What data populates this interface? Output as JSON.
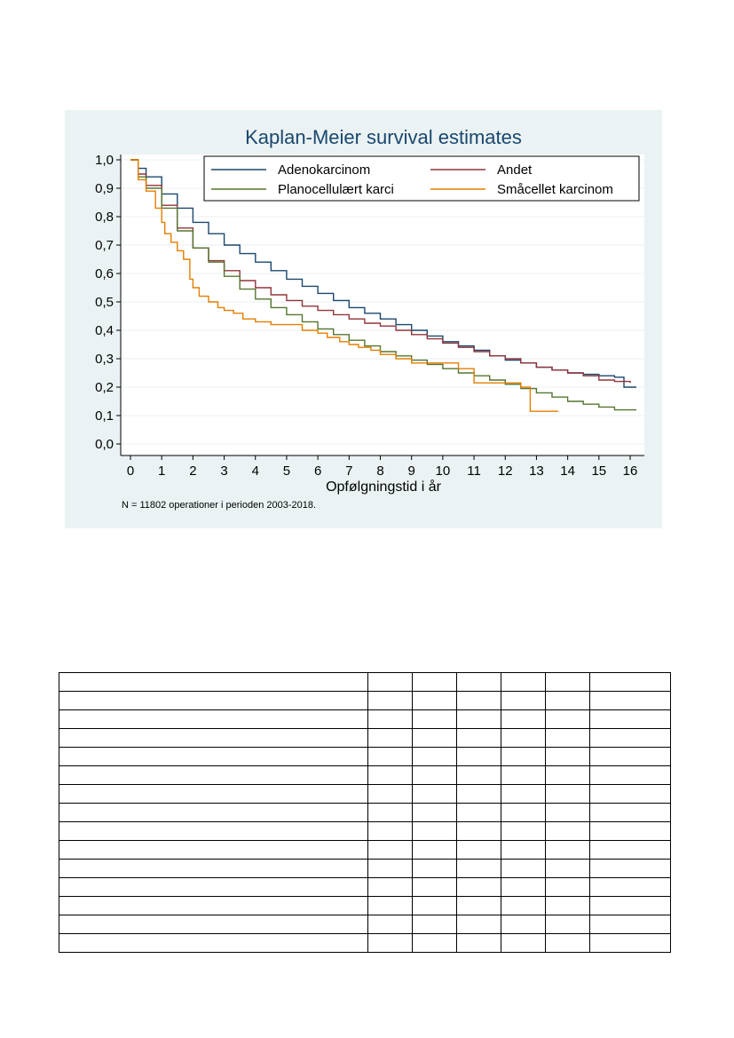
{
  "chart_data": {
    "type": "line",
    "title": "Kaplan-Meier survival estimates",
    "xlabel": "Opfølgningstid i år",
    "ylabel": "",
    "note": "N = 11802 operationer i perioden 2003-2018.",
    "xlim": [
      0,
      16
    ],
    "ylim": [
      0,
      1
    ],
    "xticks": [
      "0",
      "1",
      "2",
      "3",
      "4",
      "5",
      "6",
      "7",
      "8",
      "9",
      "10",
      "11",
      "12",
      "13",
      "14",
      "15",
      "16"
    ],
    "yticks": [
      "0,0",
      "0,1",
      "0,2",
      "0,3",
      "0,4",
      "0,5",
      "0,6",
      "0,7",
      "0,8",
      "0,9",
      "1,0"
    ],
    "grid": true,
    "legend_position": "top-right",
    "colors": {
      "adeno": "#1a476f",
      "andet": "#90353b",
      "plano": "#55752f",
      "smaa": "#e37e00",
      "panel": "#eaf2f3",
      "title": "#1a476f"
    },
    "series": [
      {
        "name": "Adenokarcinom",
        "color": "#1a476f",
        "x": [
          0,
          0.25,
          0.5,
          1,
          1.5,
          2,
          2.5,
          3,
          3.5,
          4,
          4.5,
          5,
          5.5,
          6,
          6.5,
          7,
          7.5,
          8,
          8.5,
          9,
          9.5,
          10,
          10.5,
          11,
          11.5,
          12,
          12.5,
          13,
          13.5,
          14,
          14.5,
          15,
          15.5,
          15.8,
          16.2
        ],
        "y": [
          1.0,
          0.97,
          0.94,
          0.88,
          0.83,
          0.78,
          0.74,
          0.7,
          0.67,
          0.64,
          0.61,
          0.58,
          0.555,
          0.53,
          0.505,
          0.48,
          0.46,
          0.44,
          0.42,
          0.4,
          0.38,
          0.36,
          0.345,
          0.33,
          0.31,
          0.295,
          0.285,
          0.27,
          0.26,
          0.25,
          0.245,
          0.24,
          0.235,
          0.2,
          0.2
        ]
      },
      {
        "name": "Andet",
        "color": "#90353b",
        "x": [
          0,
          0.25,
          0.5,
          1,
          1.5,
          2,
          2.5,
          3,
          3.5,
          4,
          4.5,
          5,
          5.5,
          6,
          6.5,
          7,
          7.5,
          8,
          8.5,
          9,
          9.5,
          10,
          10.5,
          11,
          11.5,
          12,
          12.5,
          13,
          13.5,
          14,
          14.5,
          15,
          15.5,
          16
        ],
        "y": [
          1.0,
          0.95,
          0.91,
          0.84,
          0.76,
          0.69,
          0.645,
          0.61,
          0.575,
          0.55,
          0.525,
          0.505,
          0.485,
          0.47,
          0.455,
          0.44,
          0.425,
          0.415,
          0.4,
          0.385,
          0.37,
          0.355,
          0.34,
          0.325,
          0.31,
          0.3,
          0.285,
          0.27,
          0.26,
          0.25,
          0.24,
          0.225,
          0.22,
          0.215
        ]
      },
      {
        "name": "Planocellulært karci",
        "color": "#55752f",
        "x": [
          0,
          0.25,
          0.5,
          1,
          1.5,
          2,
          2.5,
          3,
          3.5,
          4,
          4.5,
          5,
          5.5,
          6,
          6.5,
          7,
          7.5,
          8,
          8.5,
          9,
          9.5,
          10,
          10.5,
          11,
          11.5,
          12,
          12.5,
          13,
          13.5,
          14,
          14.5,
          15,
          15.5,
          16.2
        ],
        "y": [
          1.0,
          0.94,
          0.9,
          0.83,
          0.75,
          0.69,
          0.64,
          0.59,
          0.545,
          0.51,
          0.48,
          0.455,
          0.43,
          0.405,
          0.385,
          0.365,
          0.345,
          0.325,
          0.31,
          0.295,
          0.28,
          0.265,
          0.25,
          0.24,
          0.225,
          0.21,
          0.195,
          0.18,
          0.165,
          0.15,
          0.14,
          0.13,
          0.12,
          0.12
        ]
      },
      {
        "name": "Småcellet karcinom",
        "color": "#e37e00",
        "x": [
          0,
          0.25,
          0.5,
          0.8,
          1.0,
          1.1,
          1.3,
          1.5,
          1.7,
          1.9,
          2.0,
          2.2,
          2.5,
          2.8,
          3.0,
          3.3,
          3.6,
          4.0,
          4.5,
          5.0,
          5.5,
          6.0,
          6.3,
          6.7,
          7.0,
          7.3,
          7.7,
          8.0,
          8.5,
          9.0,
          9.5,
          10.0,
          10.5,
          11.0,
          11.5,
          12.0,
          12.5,
          12.8,
          13.3,
          13.7
        ],
        "y": [
          1.0,
          0.93,
          0.89,
          0.83,
          0.78,
          0.74,
          0.71,
          0.68,
          0.65,
          0.58,
          0.55,
          0.52,
          0.5,
          0.48,
          0.47,
          0.46,
          0.44,
          0.43,
          0.42,
          0.42,
          0.4,
          0.39,
          0.375,
          0.36,
          0.35,
          0.34,
          0.33,
          0.315,
          0.3,
          0.285,
          0.285,
          0.285,
          0.265,
          0.215,
          0.215,
          0.215,
          0.2,
          0.115,
          0.115,
          0.115
        ]
      }
    ]
  },
  "table": {
    "rows": 15,
    "cols": 7,
    "col_widths": [
      347,
      49,
      49,
      49,
      49,
      49,
      90
    ]
  }
}
